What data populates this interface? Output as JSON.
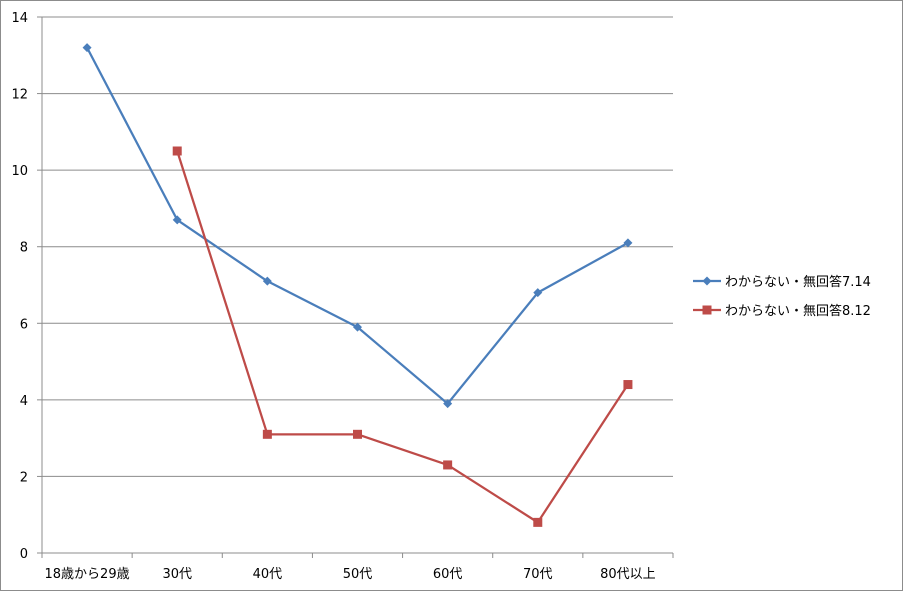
{
  "chart_data": {
    "type": "line",
    "title": "",
    "xlabel": "",
    "ylabel": "",
    "categories": [
      "18歳から29歳",
      "30代",
      "40代",
      "50代",
      "60代",
      "70代",
      "80代以上"
    ],
    "ylim": [
      0,
      14
    ],
    "yticks": [
      0,
      2,
      4,
      6,
      8,
      10,
      12,
      14
    ],
    "grid": "horizontal",
    "legend_position": "right",
    "series": [
      {
        "name": "わからない・無回答7.14",
        "color": "#4a7ebb",
        "marker": "diamond",
        "values": [
          13.2,
          8.7,
          7.1,
          5.9,
          3.9,
          6.8,
          8.1
        ]
      },
      {
        "name": "わからない・無回答8.12",
        "color": "#be4b48",
        "marker": "square",
        "values": [
          null,
          10.5,
          3.1,
          3.1,
          2.3,
          0.8,
          4.4
        ]
      }
    ]
  }
}
